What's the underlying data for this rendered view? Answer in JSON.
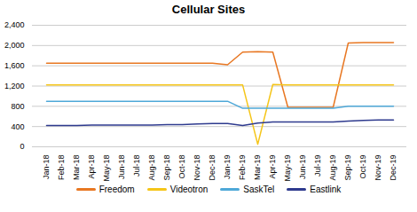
{
  "chart_data": {
    "type": "line",
    "title": "Cellular Sites",
    "categories": [
      "Jan-18",
      "Feb-18",
      "Mar-18",
      "Apr-18",
      "May-18",
      "Jun-18",
      "Jul-18",
      "Aug-18",
      "Sep-18",
      "Oct-18",
      "Nov-18",
      "Dec-18",
      "Jan-19",
      "Feb-19",
      "Mar-19",
      "Apr-19",
      "May-19",
      "Jun-19",
      "Jul-19",
      "Aug-19",
      "Sep-19",
      "Oct-19",
      "Nov-19",
      "Dec-19"
    ],
    "series": [
      {
        "name": "Freedom",
        "color": "#E87722",
        "values": [
          1650,
          1650,
          1650,
          1650,
          1650,
          1650,
          1650,
          1650,
          1650,
          1650,
          1650,
          1650,
          1620,
          1870,
          1880,
          1870,
          780,
          780,
          780,
          780,
          2050,
          2060,
          2060,
          2060
        ]
      },
      {
        "name": "Videotron",
        "color": "#F5C518",
        "values": [
          1220,
          1220,
          1220,
          1220,
          1220,
          1220,
          1220,
          1220,
          1220,
          1220,
          1220,
          1220,
          1220,
          1220,
          50,
          1230,
          1220,
          1220,
          1220,
          1220,
          1220,
          1220,
          1220,
          1220
        ]
      },
      {
        "name": "SaskTel",
        "color": "#4EA8D8",
        "values": [
          900,
          900,
          900,
          900,
          900,
          900,
          900,
          900,
          900,
          900,
          900,
          900,
          900,
          760,
          760,
          760,
          760,
          760,
          760,
          760,
          800,
          800,
          800,
          800
        ]
      },
      {
        "name": "Eastlink",
        "color": "#2E3A8E",
        "values": [
          420,
          420,
          420,
          430,
          430,
          430,
          430,
          430,
          440,
          440,
          450,
          460,
          460,
          420,
          470,
          490,
          490,
          490,
          490,
          490,
          510,
          520,
          530,
          530
        ]
      }
    ],
    "ylim": [
      0,
      2400
    ],
    "yticks": [
      0,
      400,
      800,
      1200,
      1600,
      2000,
      2400
    ],
    "grid": true,
    "legend": "bottom"
  }
}
